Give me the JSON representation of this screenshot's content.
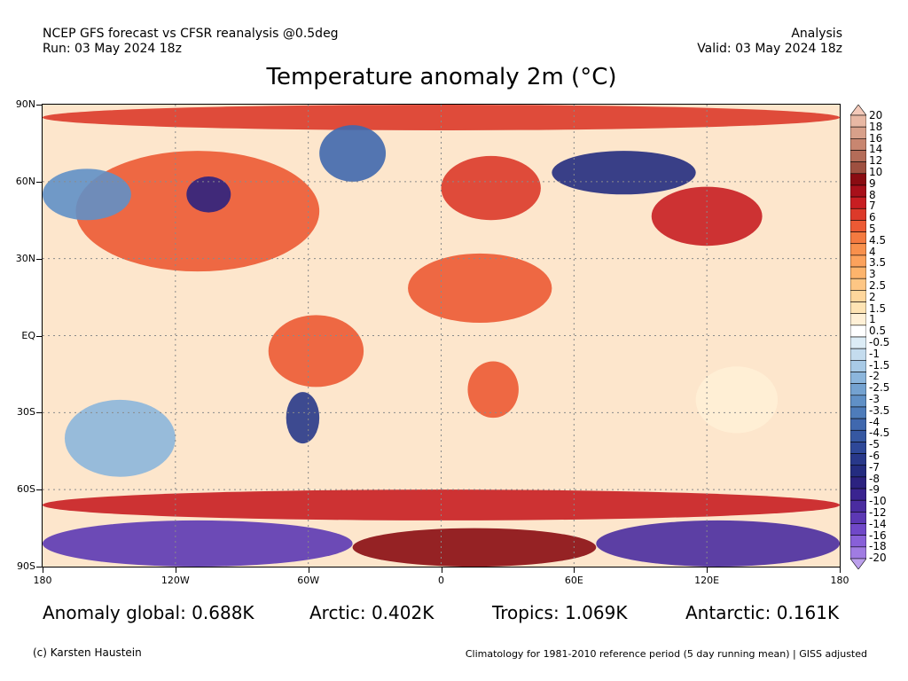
{
  "header": {
    "left_line1": "NCEP GFS forecast vs CFSR reanalysis @0.5deg",
    "left_line2": "Run: 03 May 2024 18z",
    "right_line1": "Analysis",
    "right_line2": "Valid: 03 May 2024 18z"
  },
  "title": "Temperature anomaly 2m (°C)",
  "map": {
    "projection": "equirectangular",
    "lon_range": [
      -180,
      180
    ],
    "lat_range": [
      -90,
      90
    ],
    "lat_labels": [
      {
        "lat": 90,
        "text": "90N"
      },
      {
        "lat": 60,
        "text": "60N"
      },
      {
        "lat": 30,
        "text": "30N"
      },
      {
        "lat": 0,
        "text": "EQ"
      },
      {
        "lat": -30,
        "text": "30S"
      },
      {
        "lat": -60,
        "text": "60S"
      },
      {
        "lat": -90,
        "text": "90S"
      }
    ],
    "lon_labels": [
      {
        "lon": -180,
        "text": "180"
      },
      {
        "lon": -120,
        "text": "120W"
      },
      {
        "lon": -60,
        "text": "60W"
      },
      {
        "lon": 0,
        "text": "0"
      },
      {
        "lon": 60,
        "text": "60E"
      },
      {
        "lon": 120,
        "text": "120E"
      },
      {
        "lon": 180,
        "text": "180"
      }
    ],
    "regions": [
      {
        "name": "arctic-warm-band",
        "lon": [
          -180,
          180
        ],
        "lat": [
          80,
          90
        ],
        "anomaly": 6
      },
      {
        "name": "north-america",
        "lon": [
          -165,
          -55
        ],
        "lat": [
          25,
          72
        ],
        "anomaly": 5
      },
      {
        "name": "central-canada-cold",
        "lon": [
          -115,
          -95
        ],
        "lat": [
          48,
          62
        ],
        "anomaly": -8
      },
      {
        "name": "greenland-cold",
        "lon": [
          -55,
          -25
        ],
        "lat": [
          60,
          82
        ],
        "anomaly": -4
      },
      {
        "name": "europe-warm",
        "lon": [
          0,
          45
        ],
        "lat": [
          45,
          70
        ],
        "anomaly": 6
      },
      {
        "name": "siberia-cold",
        "lon": [
          50,
          115
        ],
        "lat": [
          55,
          72
        ],
        "anomaly": -7
      },
      {
        "name": "east-asia-warm",
        "lon": [
          95,
          145
        ],
        "lat": [
          35,
          58
        ],
        "anomaly": 7
      },
      {
        "name": "sahara-warm",
        "lon": [
          -15,
          50
        ],
        "lat": [
          5,
          32
        ],
        "anomaly": 5
      },
      {
        "name": "south-america-warm",
        "lon": [
          -78,
          -35
        ],
        "lat": [
          -20,
          8
        ],
        "anomaly": 5
      },
      {
        "name": "argentina-cold",
        "lon": [
          -70,
          -55
        ],
        "lat": [
          -42,
          -22
        ],
        "anomaly": -6
      },
      {
        "name": "southern-africa-warm",
        "lon": [
          12,
          35
        ],
        "lat": [
          -32,
          -10
        ],
        "anomaly": 5
      },
      {
        "name": "australia-mixed",
        "lon": [
          115,
          152
        ],
        "lat": [
          -38,
          -12
        ],
        "anomaly": 1
      },
      {
        "name": "southern-ocean-warm-band",
        "lon": [
          -180,
          180
        ],
        "lat": [
          -72,
          -60
        ],
        "anomaly": 7
      },
      {
        "name": "antarctica-cold-west",
        "lon": [
          -180,
          -40
        ],
        "lat": [
          -90,
          -72
        ],
        "anomaly": -12
      },
      {
        "name": "antarctica-cold-east",
        "lon": [
          70,
          180
        ],
        "lat": [
          -90,
          -72
        ],
        "anomaly": -10
      },
      {
        "name": "antarctica-warm-central",
        "lon": [
          -40,
          70
        ],
        "lat": [
          -90,
          -75
        ],
        "anomaly": 9
      },
      {
        "name": "north-pacific-cold",
        "lon": [
          -180,
          -140
        ],
        "lat": [
          45,
          65
        ],
        "anomaly": -3
      },
      {
        "name": "south-pacific-cold",
        "lon": [
          -170,
          -120
        ],
        "lat": [
          -55,
          -25
        ],
        "anomaly": -2
      }
    ]
  },
  "colorbar": {
    "levels": [
      "20",
      "18",
      "16",
      "14",
      "12",
      "10",
      "9",
      "8",
      "7",
      "6",
      "5",
      "4.5",
      "4",
      "3.5",
      "3",
      "2.5",
      "2",
      "1.5",
      "1",
      "0.5",
      "-0.5",
      "-1",
      "-1.5",
      "-2",
      "-2.5",
      "-3",
      "-3.5",
      "-4",
      "-4.5",
      "-5",
      "-6",
      "-7",
      "-8",
      "-9",
      "-10",
      "-12",
      "-14",
      "-16",
      "-18",
      "-20"
    ],
    "colors": [
      "#f3c9b9",
      "#e8b8a4",
      "#d8a08a",
      "#c88670",
      "#b46c58",
      "#9e5040",
      "#8a0c12",
      "#a8101a",
      "#c81e22",
      "#dc3a2a",
      "#ec5a34",
      "#f47a40",
      "#f8904c",
      "#fca25c",
      "#fdb46c",
      "#fec684",
      "#fed69c",
      "#fee4b4",
      "#fff0d6",
      "#ffffff",
      "#dcecf6",
      "#c4dcee",
      "#a8cae6",
      "#8cb6dc",
      "#74a2d0",
      "#6090c6",
      "#4e7cba",
      "#4068ae",
      "#3658a2",
      "#2e4898",
      "#28388a",
      "#242c80",
      "#2c2280",
      "#3a2490",
      "#4a2ca0",
      "#5c38b4",
      "#7048c8",
      "#8860d8",
      "#a07ce2",
      "#bca0ec"
    ]
  },
  "stats": {
    "global": "Anomaly global: 0.688K",
    "arctic": "Arctic: 0.402K",
    "tropics": "Tropics: 1.069K",
    "antarctic": "Antarctic: 0.161K"
  },
  "footer": {
    "credit": "(c) Karsten Haustein",
    "climatology": "Climatology for 1981-2010 reference period (5 day running mean) | GISS adjusted"
  }
}
